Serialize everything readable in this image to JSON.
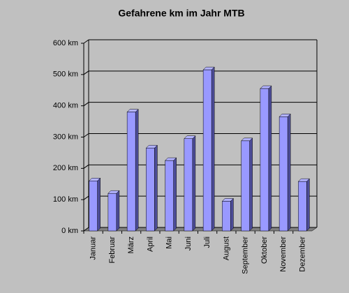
{
  "chart_data": {
    "type": "bar3d",
    "title": "Gefahrene km im Jahr MTB",
    "categories": [
      "Januar",
      "Februar",
      "März",
      "April",
      "Mai",
      "Juni",
      "Juli",
      "August",
      "September",
      "Oktober",
      "November",
      "Dezember"
    ],
    "values": [
      160,
      120,
      380,
      265,
      225,
      295,
      515,
      95,
      288,
      455,
      365,
      158
    ],
    "color": "#9999ff",
    "ylim": [
      0,
      600
    ],
    "yticks": [
      {
        "value": 0,
        "label": "0 km"
      },
      {
        "value": 100,
        "label": "100 km"
      },
      {
        "value": 200,
        "label": "200 km"
      },
      {
        "value": 300,
        "label": "300 km"
      },
      {
        "value": 400,
        "label": "400 km"
      },
      {
        "value": 500,
        "label": "500 km"
      },
      {
        "value": 600,
        "label": "600 km"
      }
    ],
    "grid": true
  }
}
